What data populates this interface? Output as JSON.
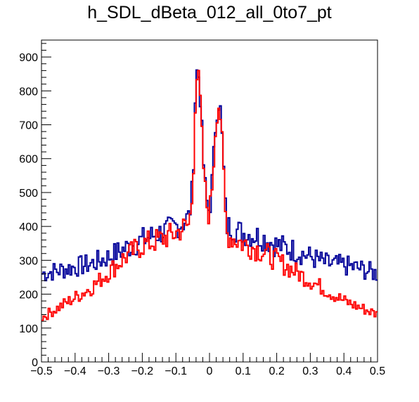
{
  "chart_data": {
    "type": "line",
    "title": "h_SDL_dBeta_012_all_0to7_pt",
    "xlabel": "",
    "ylabel": "",
    "xlim": [
      -0.5,
      0.5
    ],
    "ylim": [
      0,
      950
    ],
    "x_ticks": [
      "−0.5",
      "−0.4",
      "−0.3",
      "−0.2",
      "−0.1",
      "0",
      "0.1",
      "0.2",
      "0.3",
      "0.4",
      "0.5"
    ],
    "x_tick_values": [
      -0.5,
      -0.4,
      -0.3,
      -0.2,
      -0.1,
      0,
      0.1,
      0.2,
      0.3,
      0.4,
      0.5
    ],
    "y_ticks": [
      "0",
      "100",
      "200",
      "300",
      "400",
      "500",
      "600",
      "700",
      "800",
      "900"
    ],
    "y_tick_values": [
      0,
      100,
      200,
      300,
      400,
      500,
      600,
      700,
      800,
      900
    ],
    "grid": false,
    "legend": "none",
    "series": [
      {
        "color": "#000099",
        "x": [
          -0.5,
          -0.45,
          -0.4,
          -0.35,
          -0.3,
          -0.25,
          -0.2,
          -0.15,
          -0.1,
          -0.08,
          -0.06,
          -0.05,
          -0.04,
          -0.03,
          -0.02,
          -0.01,
          0.0,
          0.01,
          0.02,
          0.03,
          0.04,
          0.05,
          0.06,
          0.08,
          0.1,
          0.15,
          0.2,
          0.25,
          0.3,
          0.35,
          0.4,
          0.45,
          0.5
        ],
        "values": [
          260,
          270,
          280,
          290,
          310,
          335,
          360,
          380,
          400,
          410,
          430,
          520,
          860,
          840,
          620,
          480,
          440,
          560,
          740,
          780,
          620,
          400,
          400,
          390,
          380,
          370,
          345,
          330,
          310,
          290,
          285,
          275,
          260
        ]
      },
      {
        "color": "#ff0000",
        "x": [
          -0.5,
          -0.45,
          -0.4,
          -0.35,
          -0.3,
          -0.25,
          -0.2,
          -0.15,
          -0.1,
          -0.08,
          -0.06,
          -0.05,
          -0.04,
          -0.03,
          -0.02,
          -0.01,
          0.0,
          0.01,
          0.02,
          0.03,
          0.04,
          0.05,
          0.06,
          0.08,
          0.1,
          0.15,
          0.2,
          0.25,
          0.3,
          0.35,
          0.4,
          0.45,
          0.5
        ],
        "values": [
          130,
          160,
          190,
          220,
          265,
          310,
          345,
          360,
          380,
          395,
          405,
          500,
          850,
          820,
          610,
          470,
          430,
          550,
          730,
          770,
          600,
          380,
          370,
          360,
          350,
          330,
          300,
          270,
          240,
          210,
          180,
          160,
          140
        ]
      }
    ]
  }
}
